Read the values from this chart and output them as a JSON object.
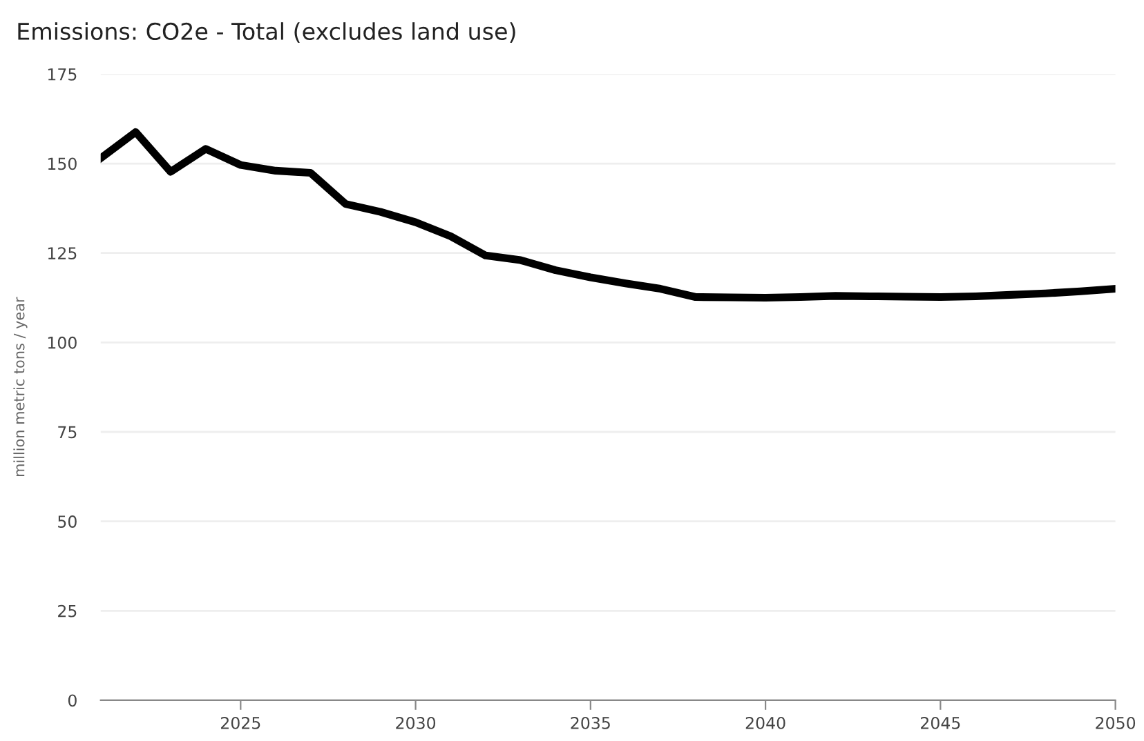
{
  "chart_data": {
    "type": "line",
    "title": "Emissions: CO2e - Total (excludes land use)",
    "ylabel": "million metric tons / year",
    "x": [
      2021,
      2022,
      2023,
      2024,
      2025,
      2026,
      2027,
      2028,
      2029,
      2030,
      2031,
      2032,
      2033,
      2034,
      2035,
      2036,
      2037,
      2038,
      2039,
      2040,
      2041,
      2042,
      2043,
      2044,
      2045,
      2046,
      2047,
      2048,
      2049,
      2050
    ],
    "series": [
      {
        "color": "#000000",
        "values": [
          151.5,
          158.8,
          147.7,
          154.1,
          149.6,
          148,
          147.4,
          138.7,
          136.5,
          133.6,
          129.7,
          124.3,
          123,
          120.2,
          118.2,
          116.5,
          115,
          112.7,
          112.6,
          112.5,
          112.7,
          113,
          112.9,
          112.8,
          112.7,
          112.9,
          113.3,
          113.7,
          114.3,
          115
        ]
      }
    ],
    "xlim": [
      2021,
      2050
    ],
    "xticks": [
      2025,
      2030,
      2035,
      2040,
      2045,
      2050
    ],
    "ylim": [
      0,
      175
    ],
    "yticks": [
      0,
      25,
      50,
      75,
      100,
      125,
      150,
      175
    ],
    "grid": "y",
    "legend": false,
    "marker": "none",
    "line_style": "solid"
  }
}
